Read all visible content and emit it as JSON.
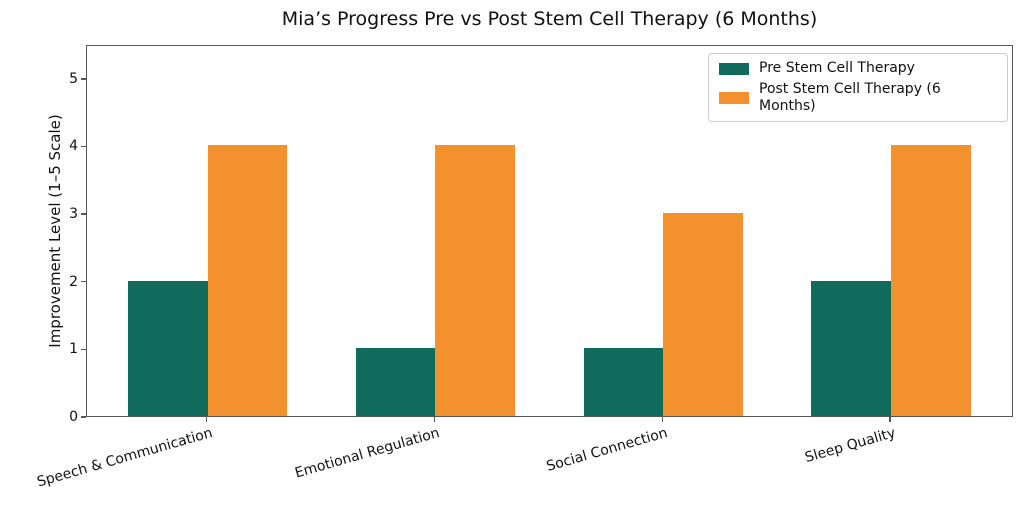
{
  "chart_data": {
    "type": "bar",
    "title": "Mia’s Progress Pre vs Post Stem Cell Therapy (6 Months)",
    "categories": [
      "Speech & Communication",
      "Emotional Regulation",
      "Social Connection",
      "Sleep Quality"
    ],
    "series": [
      {
        "name": "Pre Stem Cell Therapy",
        "color": "#106B5D",
        "values": [
          2,
          1,
          1,
          2
        ]
      },
      {
        "name": "Post Stem Cell Therapy (6 Months)",
        "color": "#F2912D",
        "values": [
          4,
          4,
          3,
          4
        ]
      }
    ],
    "xlabel": "",
    "ylabel": "Improvement Level (1–5 Scale)",
    "ylim": [
      0,
      5.5
    ],
    "yticks": [
      0,
      1,
      2,
      3,
      4,
      5
    ],
    "xlim": [
      -0.53,
      3.54
    ],
    "bar_width_ratio": 0.35,
    "xtick_rotation_deg": 16,
    "grid": false,
    "legend_position": "upper right"
  }
}
